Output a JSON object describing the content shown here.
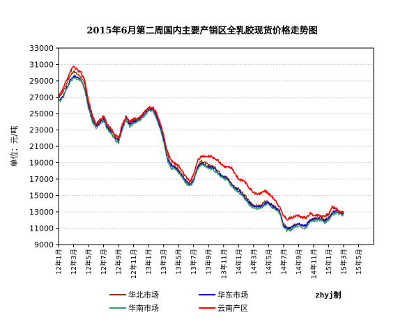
{
  "chart_data": {
    "type": "line",
    "title": "2015年6月第二周国内主要产销区全乳胶现货价格走势图",
    "ylabel": "单位：元/吨",
    "xlabel": "",
    "ylim": [
      9000,
      33000
    ],
    "yticks": [
      9000,
      11000,
      13000,
      15000,
      17000,
      19000,
      21000,
      23000,
      25000,
      27000,
      29000,
      31000,
      33000
    ],
    "x_tick_labels": [
      "12年1月",
      "12年3月",
      "12年5月",
      "12年7月",
      "12年9月",
      "12年11月",
      "13年1月",
      "13年3月",
      "13年5月",
      "13年7月",
      "13年9月",
      "13年11月",
      "14年1月",
      "14年3月",
      "14年5月",
      "14年7月",
      "14年9月",
      "14年11月",
      "15年1月",
      "15年3月",
      "15年5月"
    ],
    "grid": true,
    "legend_position": "bottom",
    "credit": "zhyj制",
    "series": [
      {
        "name": "华北市场",
        "color": "#993300",
        "points": [
          [
            0,
            27000
          ],
          [
            0.5,
            27500
          ],
          [
            1,
            28500
          ],
          [
            1.5,
            29500
          ],
          [
            2,
            30200
          ],
          [
            2.5,
            29800
          ],
          [
            3,
            29500
          ],
          [
            3.5,
            28500
          ],
          [
            4,
            26000
          ],
          [
            4.5,
            24500
          ],
          [
            5,
            23500
          ],
          [
            5.5,
            24000
          ],
          [
            6,
            24500
          ],
          [
            6.5,
            23500
          ],
          [
            7,
            23000
          ],
          [
            7.5,
            22200
          ],
          [
            8,
            21800
          ],
          [
            8.5,
            23500
          ],
          [
            9,
            24500
          ],
          [
            9.5,
            23800
          ],
          [
            10,
            24200
          ],
          [
            10.5,
            24300
          ],
          [
            11,
            24600
          ],
          [
            11.5,
            25200
          ],
          [
            12,
            25600
          ],
          [
            12.5,
            25700
          ],
          [
            13,
            25000
          ],
          [
            13.5,
            23800
          ],
          [
            14,
            22000
          ],
          [
            14.5,
            20000
          ],
          [
            15,
            18800
          ],
          [
            15.5,
            18500
          ],
          [
            16,
            18200
          ],
          [
            16.5,
            17500
          ],
          [
            17,
            16800
          ],
          [
            17.5,
            16400
          ],
          [
            18,
            17000
          ],
          [
            18.5,
            18500
          ],
          [
            19,
            19200
          ],
          [
            19.5,
            19000
          ],
          [
            20,
            18700
          ],
          [
            20.5,
            18600
          ],
          [
            21,
            18300
          ],
          [
            21.5,
            17800
          ],
          [
            22,
            17400
          ],
          [
            22.5,
            17200
          ],
          [
            23,
            16500
          ],
          [
            23.5,
            16000
          ],
          [
            24,
            15800
          ],
          [
            24.5,
            15300
          ],
          [
            25,
            14800
          ],
          [
            25.5,
            14200
          ],
          [
            26,
            13800
          ],
          [
            26.5,
            13700
          ],
          [
            27,
            13800
          ],
          [
            27.5,
            14200
          ],
          [
            28,
            14200
          ],
          [
            28.5,
            13800
          ],
          [
            29,
            13500
          ],
          [
            29.5,
            13100
          ],
          [
            30,
            11500
          ],
          [
            30.5,
            11000
          ],
          [
            31,
            11100
          ],
          [
            31.5,
            11400
          ],
          [
            32,
            11600
          ],
          [
            32.5,
            11400
          ],
          [
            33,
            11400
          ],
          [
            33.5,
            12000
          ],
          [
            34,
            12200
          ],
          [
            34.5,
            12200
          ],
          [
            35,
            12300
          ],
          [
            35.5,
            12000
          ],
          [
            36,
            12300
          ],
          [
            36.5,
            12900
          ],
          [
            37,
            13200
          ],
          [
            37.5,
            13000
          ],
          [
            38,
            12900
          ]
        ]
      },
      {
        "name": "华东市场",
        "color": "#0000cc",
        "points": [
          [
            0,
            26600
          ],
          [
            0.5,
            27000
          ],
          [
            1,
            28000
          ],
          [
            1.5,
            29000
          ],
          [
            2,
            29600
          ],
          [
            2.5,
            29400
          ],
          [
            3,
            29200
          ],
          [
            3.5,
            28000
          ],
          [
            4,
            25800
          ],
          [
            4.5,
            24200
          ],
          [
            5,
            23500
          ],
          [
            5.5,
            23800
          ],
          [
            6,
            24300
          ],
          [
            6.5,
            23300
          ],
          [
            7,
            22800
          ],
          [
            7.5,
            22000
          ],
          [
            8,
            21700
          ],
          [
            8.5,
            23200
          ],
          [
            9,
            24800
          ],
          [
            9.5,
            23600
          ],
          [
            10,
            24000
          ],
          [
            10.5,
            24200
          ],
          [
            11,
            24500
          ],
          [
            11.5,
            25000
          ],
          [
            12,
            25500
          ],
          [
            12.5,
            25600
          ],
          [
            13,
            24800
          ],
          [
            13.5,
            23500
          ],
          [
            14,
            21800
          ],
          [
            14.5,
            19600
          ],
          [
            15,
            18600
          ],
          [
            15.5,
            18400
          ],
          [
            16,
            18000
          ],
          [
            16.5,
            17300
          ],
          [
            17,
            16700
          ],
          [
            17.5,
            16300
          ],
          [
            18,
            16800
          ],
          [
            18.5,
            18300
          ],
          [
            19,
            19000
          ],
          [
            19.5,
            18800
          ],
          [
            20,
            18500
          ],
          [
            20.5,
            18400
          ],
          [
            21,
            18100
          ],
          [
            21.5,
            17600
          ],
          [
            22,
            17200
          ],
          [
            22.5,
            17000
          ],
          [
            23,
            16400
          ],
          [
            23.5,
            15900
          ],
          [
            24,
            15600
          ],
          [
            24.5,
            15100
          ],
          [
            25,
            14600
          ],
          [
            25.5,
            14000
          ],
          [
            26,
            13700
          ],
          [
            26.5,
            13600
          ],
          [
            27,
            13700
          ],
          [
            27.5,
            14000
          ],
          [
            28,
            14100
          ],
          [
            28.5,
            13700
          ],
          [
            29,
            13400
          ],
          [
            29.5,
            13000
          ],
          [
            30,
            11300
          ],
          [
            30.5,
            10900
          ],
          [
            31,
            11000
          ],
          [
            31.5,
            11300
          ],
          [
            32,
            11500
          ],
          [
            32.5,
            11300
          ],
          [
            33,
            11300
          ],
          [
            33.5,
            11900
          ],
          [
            34,
            12100
          ],
          [
            34.5,
            12100
          ],
          [
            35,
            12200
          ],
          [
            35.5,
            11900
          ],
          [
            36,
            12200
          ],
          [
            36.5,
            12800
          ],
          [
            37,
            13100
          ],
          [
            37.5,
            12900
          ],
          [
            38,
            12800
          ]
        ]
      },
      {
        "name": "华南市场",
        "color": "#339966",
        "points": [
          [
            0,
            26400
          ],
          [
            0.5,
            26800
          ],
          [
            1,
            27800
          ],
          [
            1.5,
            28800
          ],
          [
            2,
            29400
          ],
          [
            2.5,
            29200
          ],
          [
            3,
            29000
          ],
          [
            3.5,
            27800
          ],
          [
            4,
            25600
          ],
          [
            4.5,
            24000
          ],
          [
            5,
            23300
          ],
          [
            5.5,
            23600
          ],
          [
            6,
            24100
          ],
          [
            6.5,
            23100
          ],
          [
            7,
            22600
          ],
          [
            7.5,
            21800
          ],
          [
            8,
            21400
          ],
          [
            8.5,
            23000
          ],
          [
            9,
            24200
          ],
          [
            9.5,
            23400
          ],
          [
            10,
            23800
          ],
          [
            10.5,
            24000
          ],
          [
            11,
            24300
          ],
          [
            11.5,
            24800
          ],
          [
            12,
            25300
          ],
          [
            12.5,
            25400
          ],
          [
            13,
            24500
          ],
          [
            13.5,
            23200
          ],
          [
            14,
            21500
          ],
          [
            14.5,
            19300
          ],
          [
            15,
            18300
          ],
          [
            15.5,
            18200
          ],
          [
            16,
            17800
          ],
          [
            16.5,
            17100
          ],
          [
            17,
            16500
          ],
          [
            17.5,
            16200
          ],
          [
            18,
            16600
          ],
          [
            18.5,
            18100
          ],
          [
            19,
            18800
          ],
          [
            19.5,
            18600
          ],
          [
            20,
            18300
          ],
          [
            20.5,
            18200
          ],
          [
            21,
            17900
          ],
          [
            21.5,
            17400
          ],
          [
            22,
            17000
          ],
          [
            22.5,
            16800
          ],
          [
            23,
            16200
          ],
          [
            23.5,
            15700
          ],
          [
            24,
            15400
          ],
          [
            24.5,
            14900
          ],
          [
            25,
            14400
          ],
          [
            25.5,
            13800
          ],
          [
            26,
            13500
          ],
          [
            26.5,
            13400
          ],
          [
            27,
            13500
          ],
          [
            27.5,
            13800
          ],
          [
            28,
            13900
          ],
          [
            28.5,
            13500
          ],
          [
            29,
            13200
          ],
          [
            29.5,
            12800
          ],
          [
            30,
            11000
          ],
          [
            30.5,
            10700
          ],
          [
            31,
            10800
          ],
          [
            31.5,
            11100
          ],
          [
            32,
            11200
          ],
          [
            32.5,
            11000
          ],
          [
            33,
            11000
          ],
          [
            33.5,
            11700
          ],
          [
            34,
            11900
          ],
          [
            34.5,
            11900
          ],
          [
            35,
            12000
          ],
          [
            35.5,
            11700
          ],
          [
            36,
            12000
          ],
          [
            36.5,
            12600
          ],
          [
            37,
            12900
          ],
          [
            37.5,
            12700
          ],
          [
            38,
            12600
          ]
        ]
      },
      {
        "name": "云南产区",
        "color": "#ff0000",
        "points": [
          [
            0,
            27200
          ],
          [
            0.5,
            27800
          ],
          [
            1,
            29000
          ],
          [
            1.5,
            30000
          ],
          [
            2,
            30800
          ],
          [
            2.5,
            30300
          ],
          [
            3,
            30000
          ],
          [
            3.5,
            29000
          ],
          [
            4,
            26500
          ],
          [
            4.5,
            24800
          ],
          [
            5,
            23700
          ],
          [
            5.5,
            24200
          ],
          [
            6,
            24700
          ],
          [
            6.5,
            23700
          ],
          [
            7,
            23200
          ],
          [
            7.5,
            22400
          ],
          [
            8,
            22000
          ],
          [
            8.5,
            23700
          ],
          [
            9,
            24600
          ],
          [
            9.5,
            24000
          ],
          [
            10,
            24300
          ],
          [
            10.5,
            24400
          ],
          [
            11,
            24700
          ],
          [
            11.5,
            25300
          ],
          [
            12,
            25700
          ],
          [
            12.5,
            25800
          ],
          [
            13,
            25200
          ],
          [
            13.5,
            24000
          ],
          [
            14,
            22300
          ],
          [
            14.5,
            20400
          ],
          [
            15,
            19300
          ],
          [
            15.5,
            18900
          ],
          [
            16,
            18600
          ],
          [
            16.5,
            17900
          ],
          [
            17,
            17200
          ],
          [
            17.5,
            16700
          ],
          [
            18,
            17500
          ],
          [
            18.5,
            19200
          ],
          [
            19,
            19800
          ],
          [
            19.5,
            19700
          ],
          [
            20,
            19800
          ],
          [
            20.5,
            19700
          ],
          [
            21,
            19500
          ],
          [
            21.5,
            19000
          ],
          [
            22,
            18600
          ],
          [
            22.5,
            18400
          ],
          [
            23,
            18400
          ],
          [
            23.5,
            17700
          ],
          [
            24,
            17000
          ],
          [
            24.5,
            16800
          ],
          [
            25,
            16500
          ],
          [
            25.5,
            15800
          ],
          [
            26,
            15400
          ],
          [
            26.5,
            15100
          ],
          [
            27,
            15300
          ],
          [
            27.5,
            15600
          ],
          [
            28,
            15200
          ],
          [
            28.5,
            14800
          ],
          [
            29,
            14300
          ],
          [
            29.5,
            13500
          ],
          [
            30,
            12500
          ],
          [
            30.5,
            12100
          ],
          [
            31,
            12300
          ],
          [
            31.5,
            12500
          ],
          [
            32,
            12500
          ],
          [
            32.5,
            12300
          ],
          [
            33,
            12300
          ],
          [
            33.5,
            12800
          ],
          [
            34,
            12600
          ],
          [
            34.5,
            12600
          ],
          [
            35,
            12500
          ],
          [
            35.5,
            12500
          ],
          [
            36,
            12700
          ],
          [
            36.5,
            13600
          ],
          [
            37,
            13400
          ],
          [
            37.5,
            13000
          ],
          [
            38,
            12900
          ]
        ]
      }
    ]
  }
}
